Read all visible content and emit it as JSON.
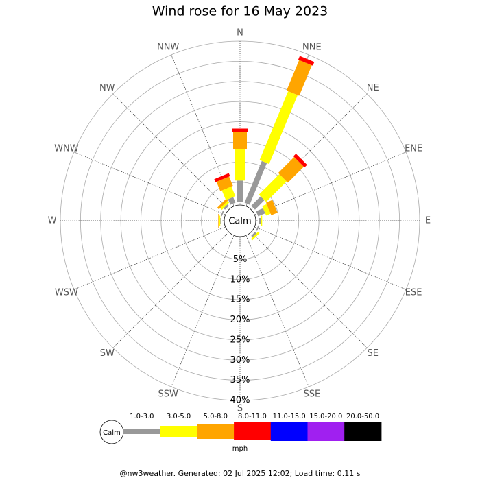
{
  "chart_data": {
    "type": "wind-rose",
    "title": "Wind rose for 16 May 2023",
    "directions": [
      "N",
      "NNE",
      "NE",
      "ENE",
      "E",
      "ESE",
      "SE",
      "SSE",
      "S",
      "SSW",
      "SW",
      "WSW",
      "W",
      "WNW",
      "NW",
      "NNW"
    ],
    "calm_label": "Calm",
    "unit": "mph",
    "rlim": [
      0,
      40
    ],
    "rticks": [
      {
        "value": 5,
        "label": "5%"
      },
      {
        "value": 10,
        "label": "10%"
      },
      {
        "value": 15,
        "label": "15%"
      },
      {
        "value": 20,
        "label": "20%"
      },
      {
        "value": 25,
        "label": "25%"
      },
      {
        "value": 30,
        "label": "30%"
      },
      {
        "value": 35,
        "label": "35%"
      },
      {
        "value": 40,
        "label": "40%"
      }
    ],
    "series": [
      {
        "name": "1.0-3.0",
        "color": "#999999",
        "values": [
          5.4,
          11.2,
          3.3,
          1.9,
          0.6,
          0.3,
          0.5,
          0,
          0,
          0,
          0,
          0,
          0.3,
          0.3,
          0.5,
          1.5
        ]
      },
      {
        "name": "3.0-5.0",
        "color": "#ffff00",
        "values": [
          7.7,
          18.5,
          7.2,
          1.2,
          0.3,
          0,
          0.5,
          0,
          0,
          0,
          0,
          0,
          0.3,
          0,
          0.6,
          2.6
        ]
      },
      {
        "name": "5.0-8.0",
        "color": "#ffa500",
        "values": [
          4.4,
          8.2,
          5.6,
          1.7,
          0,
          0,
          0,
          0,
          0,
          0,
          0,
          0,
          0.2,
          0,
          0.6,
          2.5
        ]
      },
      {
        "name": "8.0-11.0",
        "color": "#ff0000",
        "values": [
          0.8,
          1,
          0.9,
          0,
          0,
          0,
          0,
          0,
          0,
          0,
          0,
          0,
          0,
          0,
          0,
          0.8
        ]
      },
      {
        "name": "11.0-15.0",
        "color": "#0000ff",
        "values": [
          0,
          0,
          0,
          0,
          0,
          0,
          0,
          0,
          0,
          0,
          0,
          0,
          0,
          0,
          0,
          0
        ]
      },
      {
        "name": "15.0-20.0",
        "color": "#a020f0",
        "values": [
          0,
          0,
          0,
          0,
          0,
          0,
          0,
          0,
          0,
          0,
          0,
          0,
          0,
          0,
          0,
          0
        ]
      },
      {
        "name": "20.0-50.0",
        "color": "#000000",
        "values": [
          0,
          0,
          0,
          0,
          0,
          0,
          0,
          0,
          0,
          0,
          0,
          0,
          0,
          0,
          0,
          0
        ]
      }
    ]
  },
  "footer": "@nw3weather. Generated: 02 Jul 2025 12:02; Load time: 0.11 s"
}
